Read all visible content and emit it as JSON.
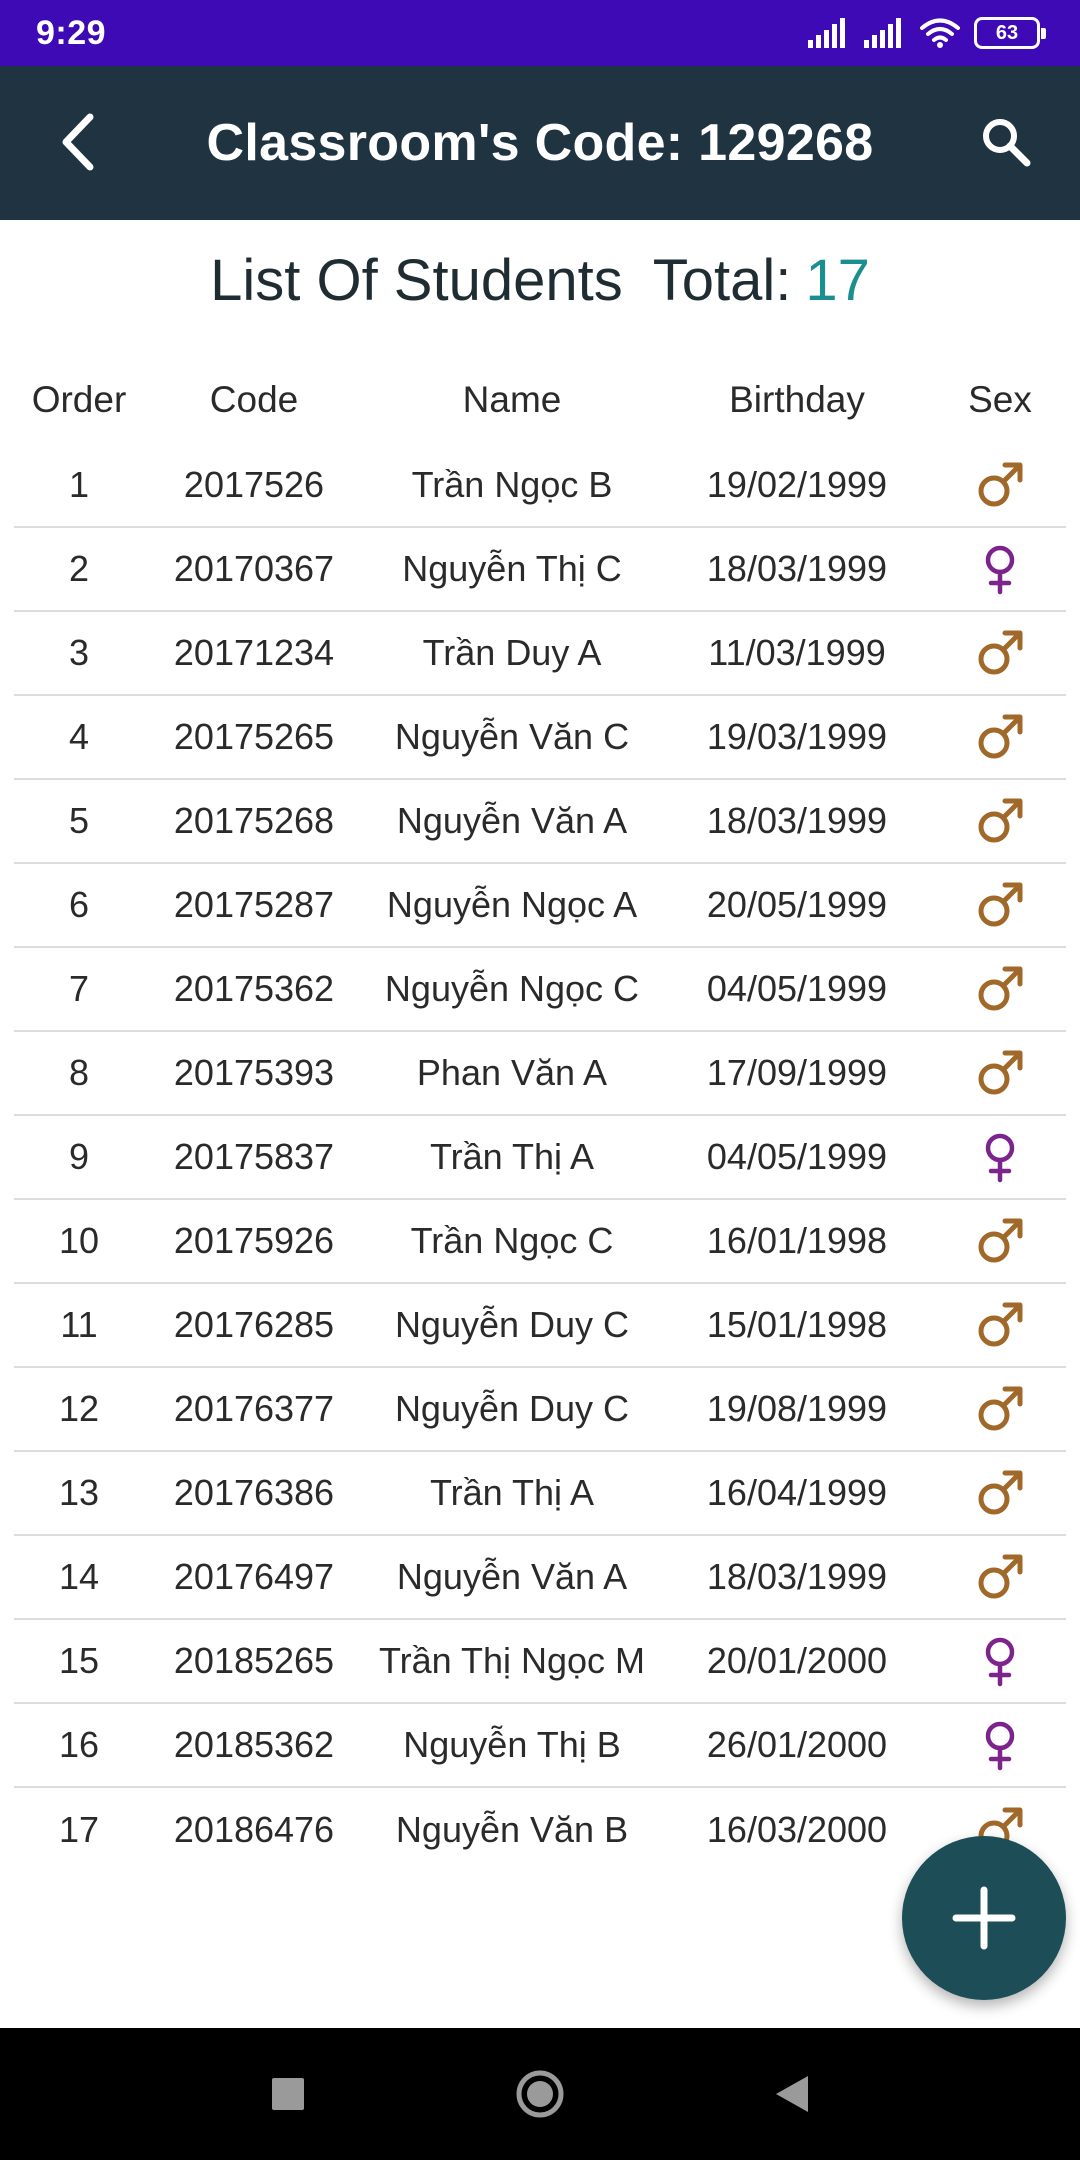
{
  "status_bar": {
    "time": "9:29",
    "battery": "63"
  },
  "app_bar": {
    "title": "Classroom's Code: 129268"
  },
  "heading": {
    "label": "List Of Students",
    "total_label": "Total:",
    "total_value": "17"
  },
  "colors": {
    "status_bar": "#3d0ab6",
    "app_bar": "#1f3340",
    "total_accent": "#1b8f8f",
    "male_icon": "#a0692a",
    "female_icon": "#7c238c",
    "fab": "#1d4d57"
  },
  "table": {
    "columns": [
      "Order",
      "Code",
      "Name",
      "Birthday",
      "Sex"
    ],
    "rows": [
      {
        "order": "1",
        "code": "2017526",
        "name": "Trần Ngọc B",
        "birthday": "19/02/1999",
        "sex": "male"
      },
      {
        "order": "2",
        "code": "20170367",
        "name": "Nguyễn Thị C",
        "birthday": "18/03/1999",
        "sex": "female"
      },
      {
        "order": "3",
        "code": "20171234",
        "name": "Trần Duy A",
        "birthday": "11/03/1999",
        "sex": "male"
      },
      {
        "order": "4",
        "code": "20175265",
        "name": "Nguyễn Văn C",
        "birthday": "19/03/1999",
        "sex": "male"
      },
      {
        "order": "5",
        "code": "20175268",
        "name": "Nguyễn Văn A",
        "birthday": "18/03/1999",
        "sex": "male"
      },
      {
        "order": "6",
        "code": "20175287",
        "name": "Nguyễn Ngọc A",
        "birthday": "20/05/1999",
        "sex": "male"
      },
      {
        "order": "7",
        "code": "20175362",
        "name": "Nguyễn Ngọc C",
        "birthday": "04/05/1999",
        "sex": "male"
      },
      {
        "order": "8",
        "code": "20175393",
        "name": "Phan Văn A",
        "birthday": "17/09/1999",
        "sex": "male"
      },
      {
        "order": "9",
        "code": "20175837",
        "name": "Trần Thị A",
        "birthday": "04/05/1999",
        "sex": "female"
      },
      {
        "order": "10",
        "code": "20175926",
        "name": "Trần Ngọc C",
        "birthday": "16/01/1998",
        "sex": "male"
      },
      {
        "order": "11",
        "code": "20176285",
        "name": "Nguyễn Duy C",
        "birthday": "15/01/1998",
        "sex": "male"
      },
      {
        "order": "12",
        "code": "20176377",
        "name": "Nguyễn Duy C",
        "birthday": "19/08/1999",
        "sex": "male"
      },
      {
        "order": "13",
        "code": "20176386",
        "name": "Trần Thị A",
        "birthday": "16/04/1999",
        "sex": "male"
      },
      {
        "order": "14",
        "code": "20176497",
        "name": "Nguyễn Văn A",
        "birthday": "18/03/1999",
        "sex": "male"
      },
      {
        "order": "15",
        "code": "20185265",
        "name": "Trần Thị Ngọc M",
        "birthday": "20/01/2000",
        "sex": "female"
      },
      {
        "order": "16",
        "code": "20185362",
        "name": "Nguyễn Thị B",
        "birthday": "26/01/2000",
        "sex": "female"
      },
      {
        "order": "17",
        "code": "20186476",
        "name": "Nguyễn Văn B",
        "birthday": "16/03/2000",
        "sex": "male"
      }
    ]
  },
  "icons": {
    "back": "arrow-back-icon",
    "search": "search-icon",
    "male": "male-icon",
    "female": "female-icon",
    "fab": "plus-icon",
    "nav_recents": "square-icon",
    "nav_home": "circle-icon",
    "nav_back": "triangle-back-icon"
  }
}
